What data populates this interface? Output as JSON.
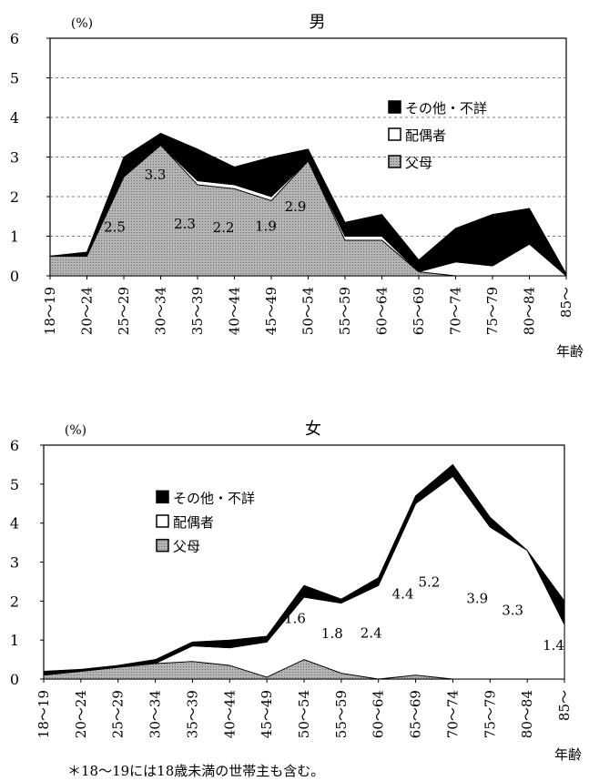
{
  "chart_data": [
    {
      "type": "area",
      "stacked": true,
      "title": "男",
      "unit_label": "(%)",
      "xlabel": "年齢",
      "ylim": [
        0,
        6
      ],
      "yticks": [
        "0",
        "1",
        "2",
        "3",
        "4",
        "5",
        "6"
      ],
      "grid": "horizontal dashed",
      "legend_position": "top-right",
      "categories": [
        "18～19",
        "20～24",
        "25～29",
        "30～34",
        "35～39",
        "40～44",
        "45～49",
        "50～54",
        "55～59",
        "60～64",
        "65～69",
        "70～74",
        "75～79",
        "80～84",
        "85～"
      ],
      "series": [
        {
          "name": "父母",
          "color": "#a6a6a6",
          "values": [
            0.5,
            0.5,
            2.5,
            3.3,
            2.3,
            2.2,
            1.9,
            2.9,
            0.9,
            0.9,
            0.1,
            0.0,
            0.0,
            0.0,
            0.0
          ]
        },
        {
          "name": "配偶者",
          "color": "#ffffff",
          "values": [
            0.0,
            0.0,
            0.0,
            0.0,
            0.1,
            0.1,
            0.1,
            0.0,
            0.1,
            0.1,
            0.0,
            0.35,
            0.25,
            0.8,
            0.0
          ]
        },
        {
          "name": "その他・不詳",
          "color": "#000000",
          "values": [
            0.0,
            0.1,
            0.5,
            0.3,
            0.8,
            0.45,
            1.0,
            0.3,
            0.35,
            0.55,
            0.3,
            0.85,
            1.3,
            0.9,
            0.05
          ]
        }
      ],
      "data_labels": [
        {
          "category": "25～29",
          "text": "2.5"
        },
        {
          "category": "30～34",
          "text": "3.3"
        },
        {
          "category": "35～39",
          "text": "2.3"
        },
        {
          "category": "40～44",
          "text": "2.2"
        },
        {
          "category": "45～49",
          "text": "1.9"
        },
        {
          "category": "50～54",
          "text": "2.9"
        }
      ]
    },
    {
      "type": "area",
      "stacked": true,
      "title": "女",
      "unit_label": "(%)",
      "xlabel": "年齢",
      "ylim": [
        0,
        6
      ],
      "yticks": [
        "0",
        "1",
        "2",
        "3",
        "4",
        "5",
        "6"
      ],
      "grid": "none",
      "legend_position": "top-center",
      "categories": [
        "18～19",
        "20～24",
        "25～29",
        "30～34",
        "35～39",
        "40～44",
        "45～49",
        "50～54",
        "55～59",
        "60～64",
        "65～69",
        "70～74",
        "75～79",
        "80～84",
        "85～"
      ],
      "series": [
        {
          "name": "父母",
          "color": "#a6a6a6",
          "values": [
            0.1,
            0.2,
            0.3,
            0.4,
            0.45,
            0.35,
            0.05,
            0.5,
            0.15,
            0.0,
            0.1,
            0.0,
            0.0,
            0.0,
            0.0
          ]
        },
        {
          "name": "配偶者",
          "color": "#ffffff",
          "values": [
            0.0,
            0.0,
            0.0,
            0.0,
            0.4,
            0.45,
            0.9,
            1.6,
            1.8,
            2.4,
            4.4,
            5.2,
            3.9,
            3.3,
            1.4
          ]
        },
        {
          "name": "その他・不詳",
          "color": "#000000",
          "values": [
            0.1,
            0.05,
            0.05,
            0.1,
            0.1,
            0.2,
            0.15,
            0.3,
            0.1,
            0.2,
            0.2,
            0.3,
            0.25,
            0.0,
            0.6
          ]
        }
      ],
      "data_labels": [
        {
          "category": "50～54",
          "text": "1.6"
        },
        {
          "category": "55～59",
          "text": "1.8"
        },
        {
          "category": "60～64",
          "text": "2.4"
        },
        {
          "category": "65～69",
          "text": "4.4"
        },
        {
          "category": "70～74",
          "text": "5.2"
        },
        {
          "category": "75～79",
          "text": "3.9"
        },
        {
          "category": "80～84",
          "text": "3.3"
        },
        {
          "category": "85～",
          "text": "1.4"
        }
      ]
    }
  ],
  "footnote": "＊18～19には18歳未満の世帯主も含む。"
}
